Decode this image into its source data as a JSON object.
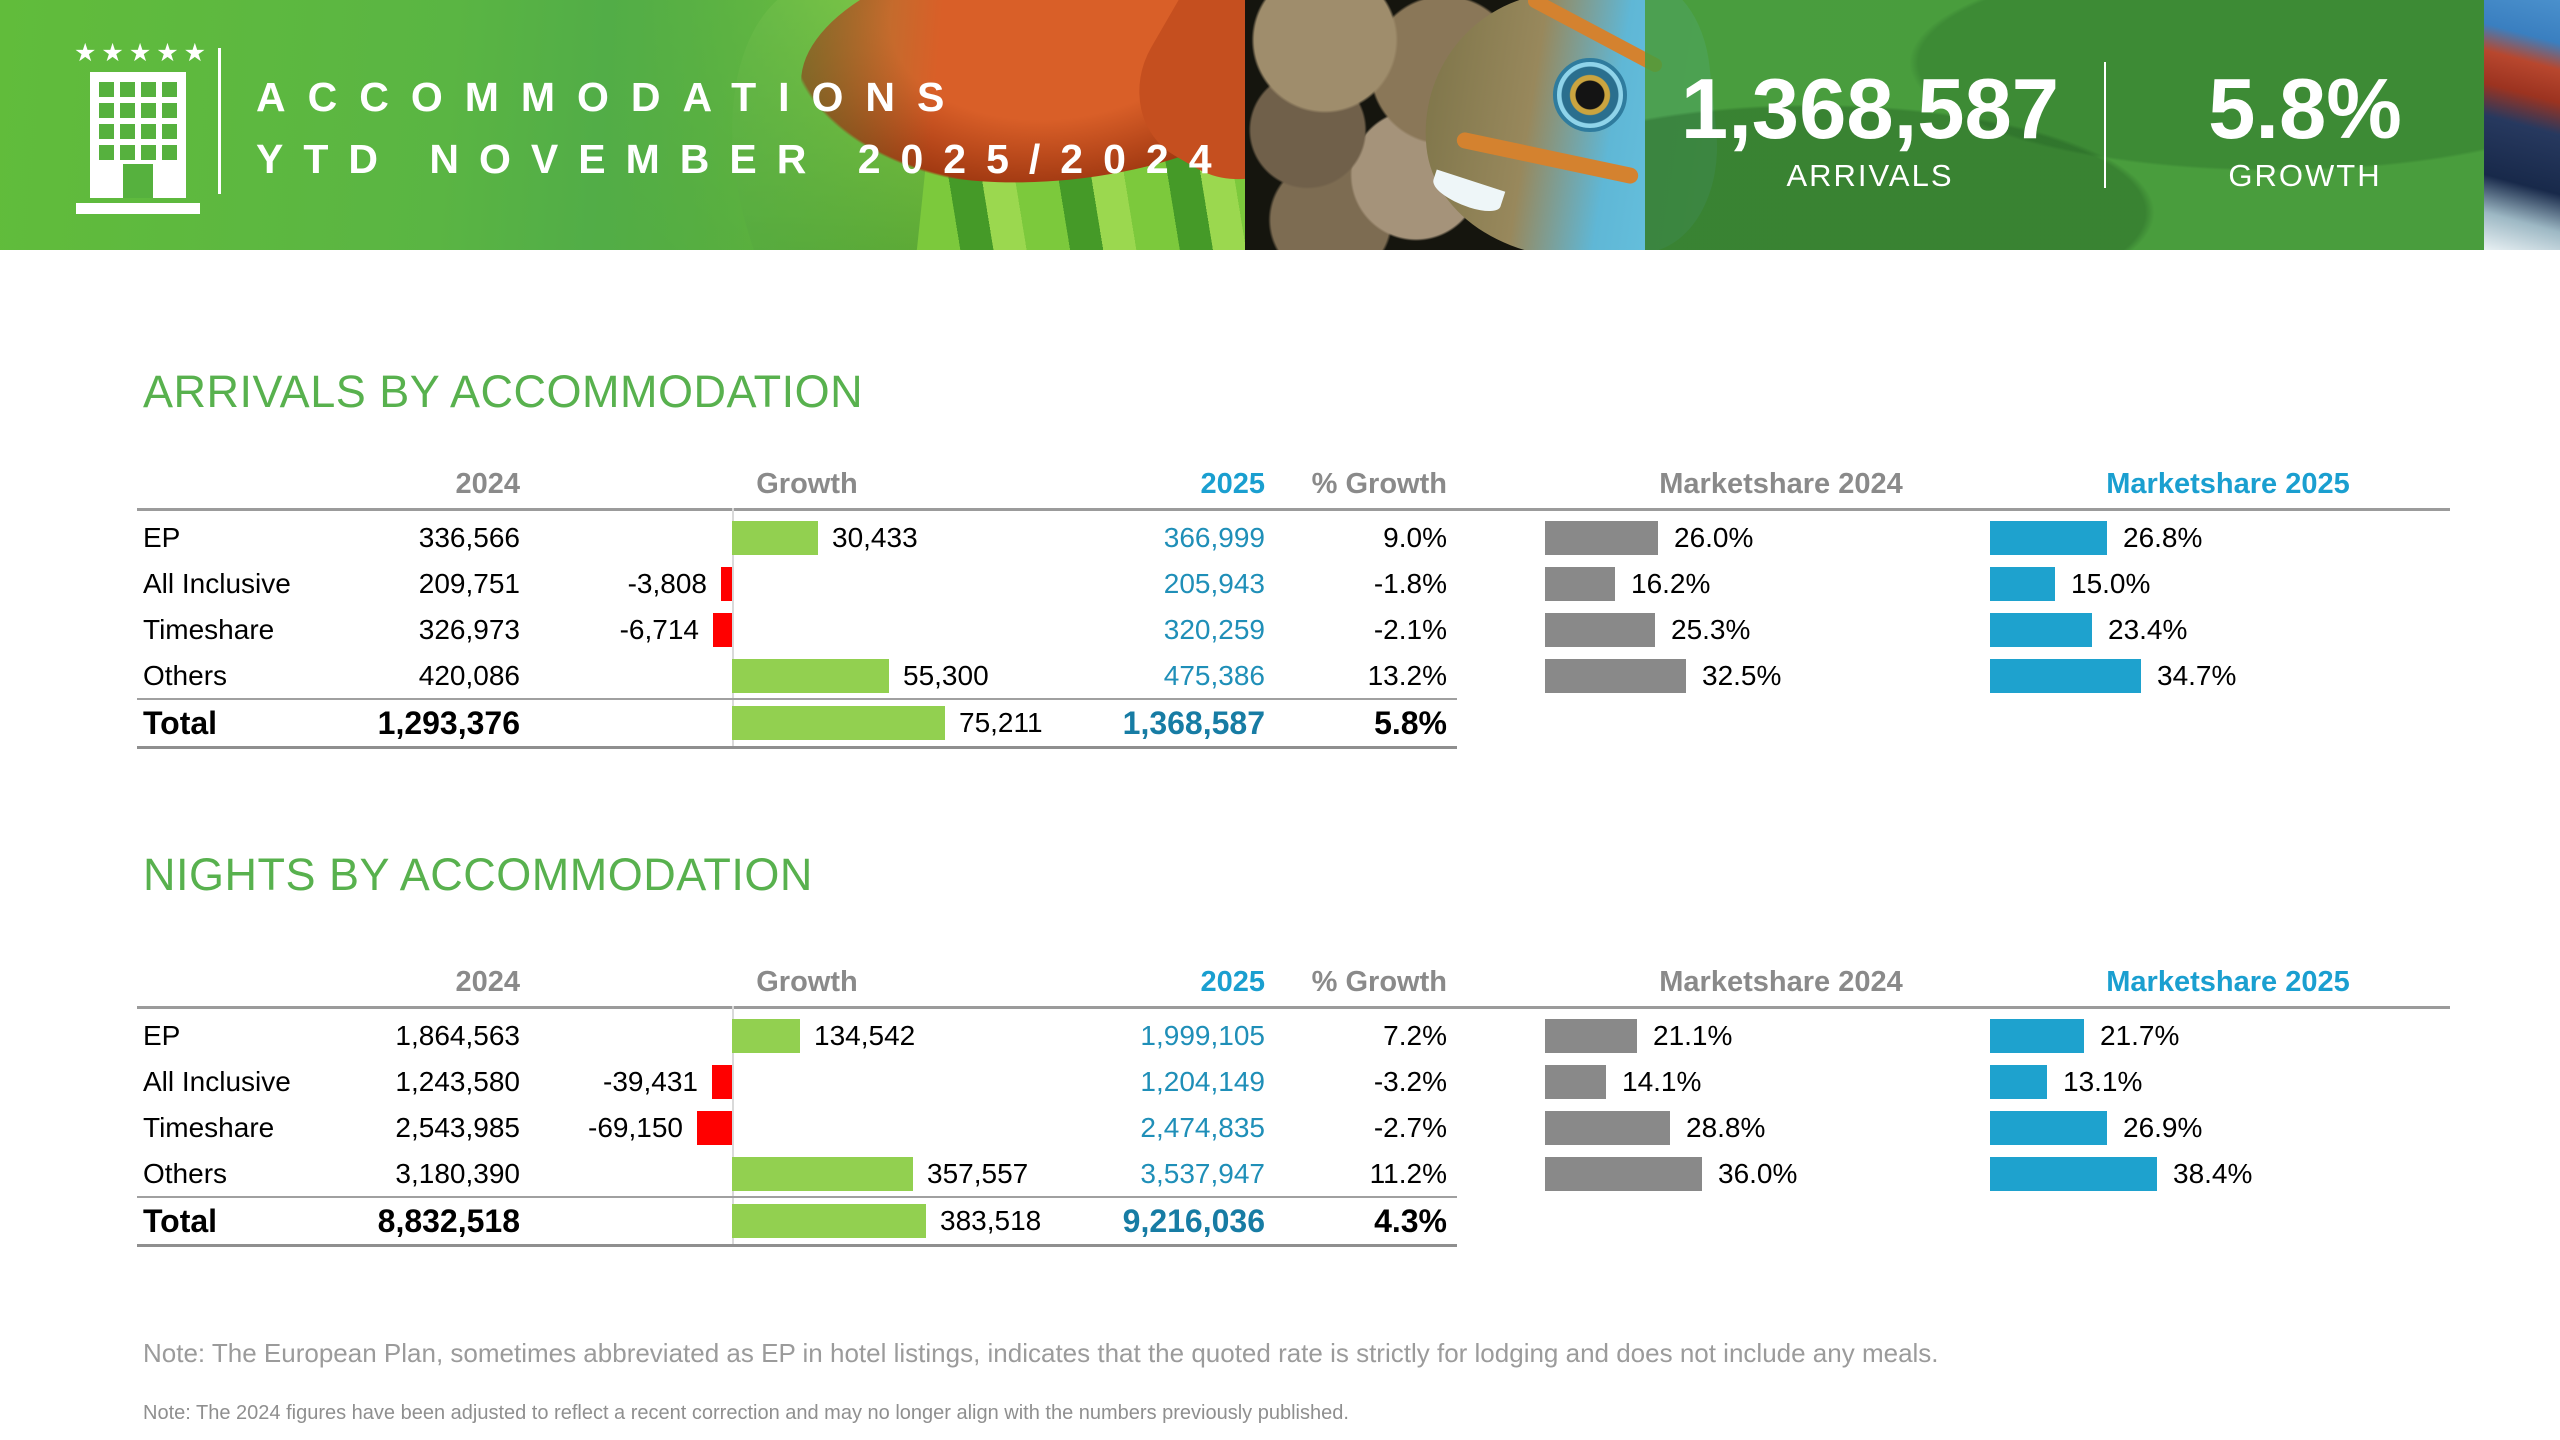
{
  "header": {
    "stars": "★★★★★",
    "title_line1": "ACCOMMODATIONS",
    "title_line2": "YTD NOVEMBER 2025/2024",
    "stats": [
      {
        "value": "1,368,587",
        "label": "ARRIVALS"
      },
      {
        "value": "5.8%",
        "label": "GROWTH"
      }
    ]
  },
  "colors": {
    "header_green": "#5bb43e",
    "section_title_green": "#58b14e",
    "growth_bar_green": "#92d050",
    "growth_bar_red": "#ff0000",
    "marketshare_2024_gray": "#898989",
    "marketshare_2025_blue": "#1ea2ce",
    "value_2025_teal": "#1f8fb8",
    "header_blue": "#1a9fd0",
    "header_gray": "#8a8a8a"
  },
  "sections": [
    {
      "title": "ARRIVALS BY ACCOMMODATION",
      "columns": [
        "2024",
        "Growth",
        "2025",
        "% Growth",
        "Marketshare 2024",
        "Marketshare 2025"
      ],
      "rows": [
        {
          "label": "EP",
          "y2024": "336,566",
          "growth": 30433,
          "growth_label": "30,433",
          "y2025": "366,999",
          "pct_growth": "9.0%",
          "ms2024": 26.0,
          "ms2024_label": "26.0%",
          "ms2025": 26.8,
          "ms2025_label": "26.8%"
        },
        {
          "label": "All Inclusive",
          "y2024": "209,751",
          "growth": -3808,
          "growth_label": "-3,808",
          "y2025": "205,943",
          "pct_growth": "-1.8%",
          "ms2024": 16.2,
          "ms2024_label": "16.2%",
          "ms2025": 15.0,
          "ms2025_label": "15.0%"
        },
        {
          "label": "Timeshare",
          "y2024": "326,973",
          "growth": -6714,
          "growth_label": "-6,714",
          "y2025": "320,259",
          "pct_growth": "-2.1%",
          "ms2024": 25.3,
          "ms2024_label": "25.3%",
          "ms2025": 23.4,
          "ms2025_label": "23.4%"
        },
        {
          "label": "Others",
          "y2024": "420,086",
          "growth": 55300,
          "growth_label": "55,300",
          "y2025": "475,386",
          "pct_growth": "13.2%",
          "ms2024": 32.5,
          "ms2024_label": "32.5%",
          "ms2025": 34.7,
          "ms2025_label": "34.7%"
        }
      ],
      "total": {
        "label": "Total",
        "y2024": "1,293,376",
        "growth": 75211,
        "growth_label": "75,211",
        "y2025": "1,368,587",
        "pct_growth": "5.8%"
      }
    },
    {
      "title": "NIGHTS BY ACCOMMODATION",
      "columns": [
        "2024",
        "Growth",
        "2025",
        "% Growth",
        "Marketshare 2024",
        "Marketshare 2025"
      ],
      "rows": [
        {
          "label": "EP",
          "y2024": "1,864,563",
          "growth": 134542,
          "growth_label": "134,542",
          "y2025": "1,999,105",
          "pct_growth": "7.2%",
          "ms2024": 21.1,
          "ms2024_label": "21.1%",
          "ms2025": 21.7,
          "ms2025_label": "21.7%"
        },
        {
          "label": "All Inclusive",
          "y2024": "1,243,580",
          "growth": -39431,
          "growth_label": "-39,431",
          "y2025": "1,204,149",
          "pct_growth": "-3.2%",
          "ms2024": 14.1,
          "ms2024_label": "14.1%",
          "ms2025": 13.1,
          "ms2025_label": "13.1%"
        },
        {
          "label": "Timeshare",
          "y2024": "2,543,985",
          "growth": -69150,
          "growth_label": "-69,150",
          "y2025": "2,474,835",
          "pct_growth": "-2.7%",
          "ms2024": 28.8,
          "ms2024_label": "28.8%",
          "ms2025": 26.9,
          "ms2025_label": "26.9%"
        },
        {
          "label": "Others",
          "y2024": "3,180,390",
          "growth": 357557,
          "growth_label": "357,557",
          "y2025": "3,537,947",
          "pct_growth": "11.2%",
          "ms2024": 36.0,
          "ms2024_label": "36.0%",
          "ms2025": 38.4,
          "ms2025_label": "38.4%"
        }
      ],
      "total": {
        "label": "Total",
        "y2024": "8,832,518",
        "growth": 383518,
        "growth_label": "383,518",
        "y2025": "9,216,036",
        "pct_growth": "4.3%"
      }
    }
  ],
  "notes": [
    "Note: The European Plan, sometimes abbreviated as EP in hotel listings, indicates that the quoted rate is strictly for lodging and does not include any meals.",
    "Note: The 2024 figures have been adjusted to reflect a recent correction and may no longer align with the numbers previously published."
  ],
  "chart_data": [
    {
      "type": "table",
      "title": "ARRIVALS BY ACCOMMODATION",
      "categories": [
        "EP",
        "All Inclusive",
        "Timeshare",
        "Others",
        "Total"
      ],
      "series": [
        {
          "name": "2024",
          "values": [
            336566,
            209751,
            326973,
            420086,
            1293376
          ]
        },
        {
          "name": "Growth",
          "values": [
            30433,
            -3808,
            -6714,
            55300,
            75211
          ]
        },
        {
          "name": "2025",
          "values": [
            366999,
            205943,
            320259,
            475386,
            1368587
          ]
        },
        {
          "name": "% Growth",
          "values": [
            9.0,
            -1.8,
            -2.1,
            13.2,
            5.8
          ]
        },
        {
          "name": "Marketshare 2024 (%)",
          "values": [
            26.0,
            16.2,
            25.3,
            32.5,
            null
          ]
        },
        {
          "name": "Marketshare 2025 (%)",
          "values": [
            26.8,
            15.0,
            23.4,
            34.7,
            null
          ]
        }
      ],
      "layout_hints": {
        "growth_bars": "green positive / red negative, zero axis in Growth column",
        "marketshare_bars": "gray 2024, blue 2025"
      }
    },
    {
      "type": "table",
      "title": "NIGHTS BY ACCOMMODATION",
      "categories": [
        "EP",
        "All Inclusive",
        "Timeshare",
        "Others",
        "Total"
      ],
      "series": [
        {
          "name": "2024",
          "values": [
            1864563,
            1243580,
            2543985,
            3180390,
            8832518
          ]
        },
        {
          "name": "Growth",
          "values": [
            134542,
            -39431,
            -69150,
            357557,
            383518
          ]
        },
        {
          "name": "2025",
          "values": [
            1999105,
            1204149,
            2474835,
            3537947,
            9216036
          ]
        },
        {
          "name": "% Growth",
          "values": [
            7.2,
            -3.2,
            -2.7,
            11.2,
            4.3
          ]
        },
        {
          "name": "Marketshare 2024 (%)",
          "values": [
            21.1,
            14.1,
            28.8,
            36.0,
            null
          ]
        },
        {
          "name": "Marketshare 2025 (%)",
          "values": [
            21.7,
            13.1,
            26.9,
            38.4,
            null
          ]
        }
      ],
      "layout_hints": {
        "growth_bars": "green positive / red negative, zero axis in Growth column",
        "marketshare_bars": "gray 2024, blue 2025"
      }
    }
  ]
}
